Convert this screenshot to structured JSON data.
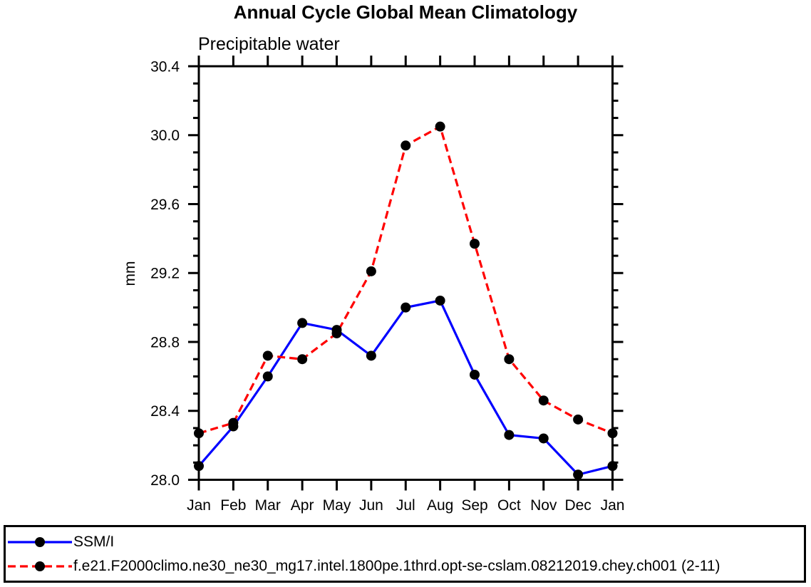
{
  "chart_data": {
    "type": "line",
    "title": "Annual Cycle Global Mean Climatology",
    "subtitle": "Precipitable water",
    "ylabel": "mm",
    "xlabel": "",
    "categories": [
      "Jan",
      "Feb",
      "Mar",
      "Apr",
      "May",
      "Jun",
      "Jul",
      "Aug",
      "Sep",
      "Oct",
      "Nov",
      "Dec",
      "Jan"
    ],
    "ylim": [
      28.0,
      30.4
    ],
    "ytick_labels": [
      "28.0",
      "28.4",
      "28.8",
      "29.2",
      "29.6",
      "30.0",
      "30.4"
    ],
    "ytick_minor_step": 0.1,
    "grid": false,
    "legend_position": "bottom-outside",
    "axis_color": "#000000",
    "marker_color": "#000000",
    "background_color": "#ffffff",
    "series": [
      {
        "name": "SSM/I",
        "color": "#0000ff",
        "line_style": "solid",
        "values": [
          28.08,
          28.31,
          28.6,
          28.91,
          28.87,
          28.72,
          29.0,
          29.04,
          28.61,
          28.26,
          28.24,
          28.03,
          28.08
        ]
      },
      {
        "name": "f.e21.F2000climo.ne30_ne30_mg17.intel.1800pe.1thrd.opt-se-cslam.08212019.chey.ch001 (2-11)",
        "color": "#ff0000",
        "line_style": "dashed",
        "values": [
          28.27,
          28.33,
          28.72,
          28.7,
          28.85,
          29.21,
          29.94,
          30.05,
          29.37,
          28.7,
          28.46,
          28.35,
          28.27
        ]
      }
    ]
  }
}
